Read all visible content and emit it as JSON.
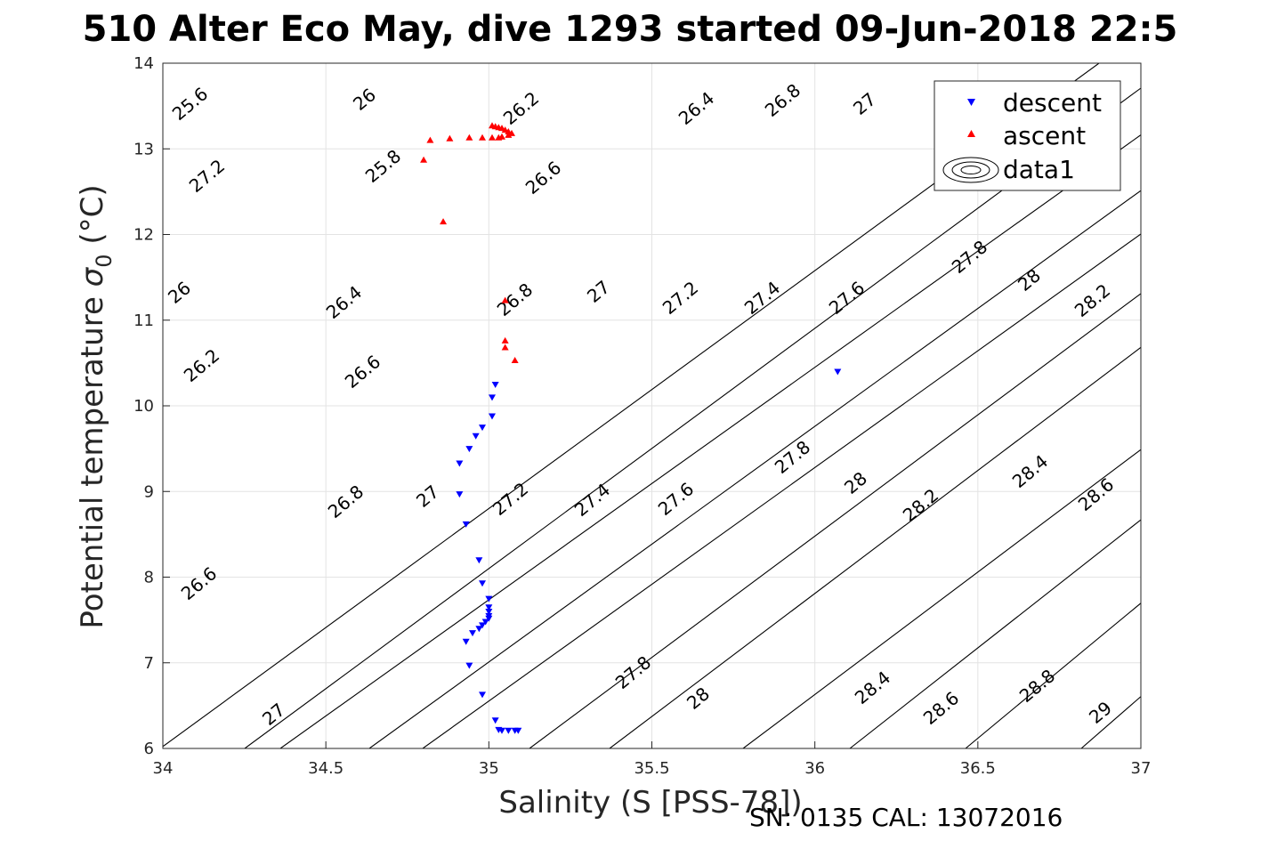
{
  "chart_data": {
    "type": "scatter",
    "title": "510 Alter Eco May, dive 1293 started 09-Jun-2018 22:5",
    "xlabel": "Salinity (S [PSS-78])",
    "ylabel_main": "Potential temperature ",
    "ylabel_sigma": "σ",
    "ylabel_sub": "0",
    "ylabel_unit": " (°C)",
    "footer": "SN: 0135  CAL: 13072016",
    "xlim": [
      34,
      37
    ],
    "ylim": [
      6,
      14
    ],
    "xticks": [
      "34",
      "34.5",
      "35",
      "35.5",
      "36",
      "36.5",
      "37"
    ],
    "yticks": [
      "6",
      "7",
      "8",
      "9",
      "10",
      "11",
      "12",
      "13",
      "14"
    ],
    "grid": true,
    "legend_position": "top-right",
    "legend": [
      {
        "label": "descent",
        "marker": "triangle-down",
        "color": "#0000ff"
      },
      {
        "label": "ascent",
        "marker": "triangle-up",
        "color": "#ff0000"
      },
      {
        "label": "data1",
        "marker": "contour",
        "color": "#000000"
      }
    ],
    "contour_labels": [
      "25.6",
      "26",
      "26.2",
      "26.4",
      "26.8",
      "27",
      "27.2",
      "25.8",
      "26.6",
      "26",
      "26.4",
      "26.8",
      "27",
      "27.2",
      "27.4",
      "27.6",
      "27.8",
      "28",
      "28.2",
      "26.2",
      "26.6",
      "27.8",
      "28",
      "26.8",
      "27",
      "27.2",
      "27.4",
      "27.6",
      "28.2",
      "28.4",
      "28.6",
      "26.6",
      "27.8",
      "28",
      "28.4",
      "28.6",
      "28.8",
      "27",
      "29"
    ],
    "series": [
      {
        "name": "descent",
        "color": "#0000ff",
        "marker": "triangle-down",
        "points": [
          [
            35.02,
            10.25
          ],
          [
            35.01,
            10.1
          ],
          [
            35.01,
            9.88
          ],
          [
            34.98,
            9.75
          ],
          [
            34.96,
            9.65
          ],
          [
            34.94,
            9.5
          ],
          [
            34.91,
            9.33
          ],
          [
            34.91,
            8.97
          ],
          [
            34.93,
            8.62
          ],
          [
            34.97,
            8.2
          ],
          [
            34.98,
            7.93
          ],
          [
            35.0,
            7.75
          ],
          [
            35.0,
            7.65
          ],
          [
            35.0,
            7.6
          ],
          [
            35.0,
            7.55
          ],
          [
            35.0,
            7.52
          ],
          [
            34.99,
            7.48
          ],
          [
            34.98,
            7.44
          ],
          [
            34.97,
            7.4
          ],
          [
            34.95,
            7.35
          ],
          [
            34.93,
            7.25
          ],
          [
            34.94,
            6.97
          ],
          [
            34.98,
            6.63
          ],
          [
            35.02,
            6.33
          ],
          [
            35.03,
            6.22
          ],
          [
            35.04,
            6.21
          ],
          [
            35.06,
            6.21
          ],
          [
            35.08,
            6.21
          ],
          [
            35.09,
            6.21
          ],
          [
            36.07,
            10.4
          ]
        ]
      },
      {
        "name": "ascent",
        "color": "#ff0000",
        "marker": "triangle-up",
        "points": [
          [
            35.01,
            13.27
          ],
          [
            35.02,
            13.26
          ],
          [
            35.03,
            13.25
          ],
          [
            35.04,
            13.24
          ],
          [
            35.05,
            13.22
          ],
          [
            35.06,
            13.2
          ],
          [
            35.07,
            13.18
          ],
          [
            35.06,
            13.16
          ],
          [
            35.04,
            13.14
          ],
          [
            35.03,
            13.13
          ],
          [
            35.01,
            13.13
          ],
          [
            34.98,
            13.13
          ],
          [
            34.94,
            13.13
          ],
          [
            34.88,
            13.12
          ],
          [
            34.82,
            13.1
          ],
          [
            34.8,
            12.87
          ],
          [
            34.86,
            12.15
          ],
          [
            35.05,
            11.23
          ],
          [
            35.05,
            10.76
          ],
          [
            35.05,
            10.68
          ],
          [
            35.08,
            10.53
          ]
        ]
      }
    ]
  }
}
